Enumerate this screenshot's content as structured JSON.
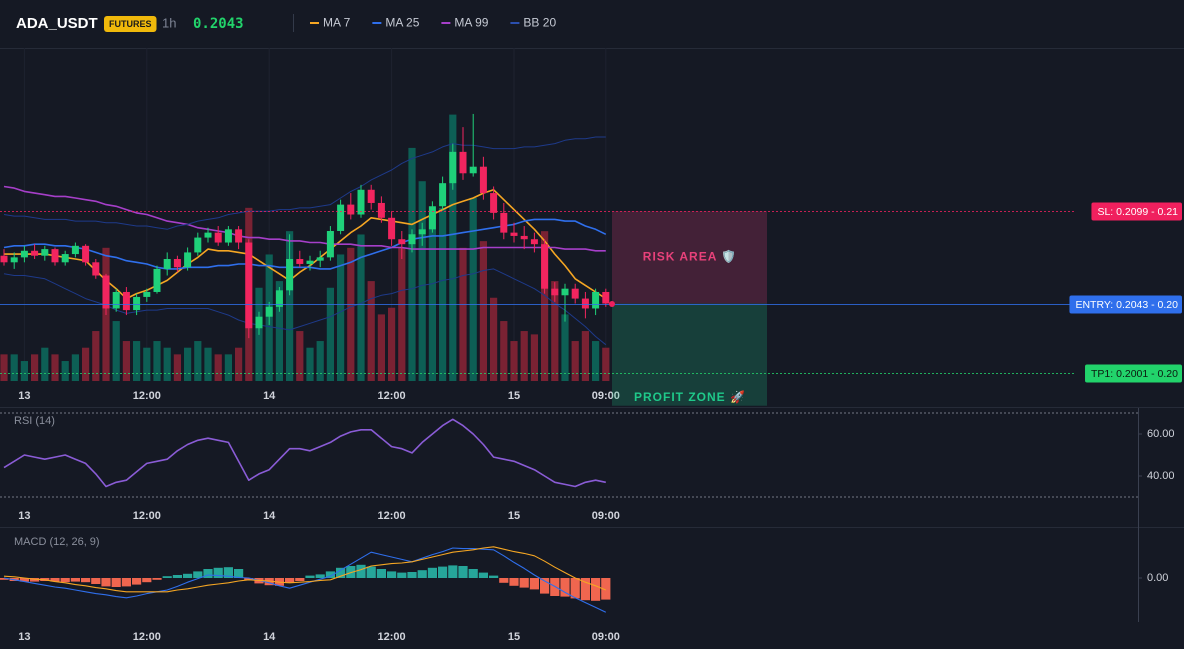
{
  "header": {
    "symbol": "ADA_USDT",
    "badge": "FUTURES",
    "interval": "1h",
    "price": 0.2043
  },
  "chart_data": [
    {
      "type": "candlestick",
      "categories": [
        null,
        null,
        "13",
        null,
        null,
        null,
        null,
        null,
        null,
        null,
        null,
        null,
        null,
        null,
        "12:00",
        null,
        null,
        null,
        null,
        null,
        null,
        null,
        null,
        null,
        null,
        null,
        "14",
        null,
        null,
        null,
        null,
        null,
        null,
        null,
        null,
        null,
        null,
        null,
        "12:00",
        null,
        null,
        null,
        null,
        null,
        null,
        null,
        null,
        null,
        null,
        null,
        "15",
        null,
        null,
        null,
        null,
        null,
        null,
        null,
        null,
        "09:00"
      ],
      "open": [
        0.2072,
        0.2068,
        0.2071,
        0.2075,
        0.2072,
        0.2076,
        0.2068,
        0.2073,
        0.2078,
        0.2068,
        0.206,
        0.204,
        0.205,
        0.2039,
        0.2047,
        0.205,
        0.2064,
        0.207,
        0.2065,
        0.2074,
        0.2083,
        0.2086,
        0.208,
        0.2088,
        0.208,
        0.2028,
        0.2035,
        0.2041,
        0.2051,
        0.207,
        0.2067,
        0.2069,
        0.2071,
        0.2087,
        0.2103,
        0.2097,
        0.2112,
        0.2104,
        0.2095,
        0.2082,
        0.2079,
        0.2085,
        0.2088,
        0.2102,
        0.2116,
        0.2135,
        0.2122,
        0.2126,
        0.211,
        0.2098,
        0.2086,
        0.2084,
        0.2082,
        0.2079,
        0.2052,
        0.2048,
        0.2052,
        0.2046,
        0.204,
        0.205
      ],
      "high": [
        0.2076,
        0.2074,
        0.2078,
        0.2079,
        0.2078,
        0.2077,
        0.2075,
        0.208,
        0.2079,
        0.207,
        0.2061,
        0.2052,
        0.2053,
        0.2049,
        0.2052,
        0.2066,
        0.2074,
        0.2072,
        0.2077,
        0.2086,
        0.2089,
        0.209,
        0.209,
        0.209,
        0.2082,
        0.2038,
        0.2044,
        0.2053,
        0.2085,
        0.2075,
        0.2072,
        0.2075,
        0.209,
        0.2106,
        0.211,
        0.2115,
        0.2115,
        0.2108,
        0.2099,
        0.2087,
        0.2088,
        0.2092,
        0.2105,
        0.212,
        0.214,
        0.215,
        0.2158,
        0.2132,
        0.2114,
        0.2104,
        0.2092,
        0.209,
        0.2086,
        0.2082,
        0.2056,
        0.2055,
        0.2055,
        0.205,
        0.2052,
        0.2052
      ],
      "low": [
        0.2066,
        0.2064,
        0.2068,
        0.207,
        0.2069,
        0.2066,
        0.2066,
        0.2071,
        0.2066,
        0.2058,
        0.2036,
        0.2038,
        0.2036,
        0.2036,
        0.2044,
        0.2049,
        0.206,
        0.2062,
        0.2063,
        0.2072,
        0.208,
        0.2078,
        0.2078,
        0.2076,
        0.2022,
        0.2024,
        0.203,
        0.2038,
        0.2048,
        0.2065,
        0.2063,
        0.2065,
        0.2069,
        0.2085,
        0.2094,
        0.2095,
        0.21,
        0.2092,
        0.2078,
        0.207,
        0.2074,
        0.2078,
        0.2086,
        0.21,
        0.2112,
        0.2118,
        0.212,
        0.2106,
        0.2094,
        0.2082,
        0.208,
        0.2076,
        0.2074,
        0.2049,
        0.2044,
        0.2032,
        0.2043,
        0.2034,
        0.2036,
        0.2041
      ],
      "close": [
        0.2068,
        0.2071,
        0.2075,
        0.2072,
        0.2076,
        0.2068,
        0.2073,
        0.2078,
        0.2068,
        0.206,
        0.204,
        0.205,
        0.2039,
        0.2047,
        0.205,
        0.2064,
        0.207,
        0.2065,
        0.2074,
        0.2083,
        0.2086,
        0.208,
        0.2088,
        0.208,
        0.2028,
        0.2035,
        0.2041,
        0.2051,
        0.207,
        0.2067,
        0.2069,
        0.2071,
        0.2087,
        0.2103,
        0.2097,
        0.2112,
        0.2104,
        0.2095,
        0.2082,
        0.2079,
        0.2085,
        0.2088,
        0.2102,
        0.2116,
        0.2135,
        0.2122,
        0.2126,
        0.211,
        0.2098,
        0.2086,
        0.2084,
        0.2082,
        0.2079,
        0.2052,
        0.2048,
        0.2052,
        0.2046,
        0.204,
        0.205,
        0.2043
      ],
      "volume": [
        8,
        8,
        6,
        8,
        10,
        8,
        6,
        8,
        10,
        15,
        40,
        18,
        12,
        12,
        10,
        12,
        10,
        8,
        10,
        12,
        10,
        8,
        8,
        10,
        52,
        28,
        38,
        30,
        45,
        15,
        10,
        12,
        28,
        38,
        40,
        44,
        30,
        20,
        22,
        40,
        70,
        60,
        50,
        52,
        80,
        40,
        55,
        42,
        25,
        18,
        12,
        15,
        14,
        45,
        30,
        20,
        12,
        15,
        12,
        10
      ],
      "ylim": [
        0.1996,
        0.2198
      ],
      "volume_lim": [
        0,
        100
      ],
      "up_color": "#1fd17a",
      "down_color": "#f2255f",
      "volume_up_color": "#0d5f55",
      "volume_down_color": "#7a2233",
      "grid": true,
      "series": [
        {
          "name": "MA 7",
          "color": "#f5a623",
          "values": [
            0.2073,
            0.2073,
            0.2073,
            0.2073,
            0.2073,
            0.2072,
            0.2071,
            0.207,
            0.2069,
            0.2063,
            0.2057,
            0.2052,
            0.2046,
            0.2049,
            0.2051,
            0.2054,
            0.2057,
            0.2062,
            0.2067,
            0.2071,
            0.2076,
            0.2075,
            0.2075,
            0.2074,
            0.2073,
            0.2069,
            0.2065,
            0.2061,
            0.2057,
            0.2062,
            0.2066,
            0.2071,
            0.2076,
            0.2081,
            0.2086,
            0.209,
            0.2095,
            0.2094,
            0.2093,
            0.2092,
            0.2091,
            0.2094,
            0.2097,
            0.21,
            0.2103,
            0.2105,
            0.2107,
            0.211,
            0.2112,
            0.2106,
            0.21,
            0.2094,
            0.2088,
            0.2081,
            0.2073,
            0.2066,
            0.2058,
            0.2054,
            0.205,
            0.2046
          ]
        },
        {
          "name": "MA 25",
          "color": "#2f6fec",
          "values": [
            0.2077,
            0.2078,
            0.2078,
            0.2079,
            0.2079,
            0.2078,
            0.2078,
            0.2077,
            0.2076,
            0.2074,
            0.2072,
            0.2071,
            0.2069,
            0.2068,
            0.2067,
            0.2065,
            0.2064,
            0.2064,
            0.2065,
            0.2065,
            0.2065,
            0.2066,
            0.2066,
            0.2067,
            0.2067,
            0.2066,
            0.2066,
            0.2065,
            0.2065,
            0.2065,
            0.2065,
            0.2064,
            0.2064,
            0.2066,
            0.2068,
            0.2071,
            0.2073,
            0.2075,
            0.2077,
            0.208,
            0.2082,
            0.2083,
            0.2084,
            0.2084,
            0.2085,
            0.2086,
            0.2087,
            0.2088,
            0.2089,
            0.209,
            0.2091,
            0.2093,
            0.2094,
            0.2094,
            0.2094,
            0.2093,
            0.2093,
            0.209,
            0.2088,
            0.2085
          ]
        },
        {
          "name": "MA 99",
          "color": "#a63fc9",
          "values": [
            0.2114,
            0.2113,
            0.2111,
            0.211,
            0.2109,
            0.2108,
            0.2108,
            0.2107,
            0.2106,
            0.2105,
            0.2103,
            0.2102,
            0.21,
            0.2098,
            0.2097,
            0.2095,
            0.2093,
            0.2092,
            0.2091,
            0.2089,
            0.2088,
            0.2087,
            0.2086,
            0.2084,
            0.2083,
            0.2083,
            0.2082,
            0.2082,
            0.2081,
            0.2081,
            0.208,
            0.208,
            0.2079,
            0.2079,
            0.2079,
            0.2078,
            0.2078,
            0.2078,
            0.2077,
            0.2077,
            0.2076,
            0.2076,
            0.2076,
            0.2076,
            0.2076,
            0.2076,
            0.2076,
            0.2077,
            0.2077,
            0.2077,
            0.2077,
            0.2077,
            0.2077,
            0.2077,
            0.2077,
            0.2076,
            0.2076,
            0.2076,
            0.2075,
            0.2075
          ]
        },
        {
          "name": "BB 20",
          "color": "#1e3a8a",
          "values": [
            0.2097,
            0.2096,
            0.2096,
            0.2095,
            0.2094,
            0.2094,
            0.2094,
            0.2093,
            0.2093,
            0.2093,
            0.2092,
            0.2092,
            0.2091,
            0.209,
            0.209,
            0.2089,
            0.2088,
            0.209,
            0.2091,
            0.2093,
            0.2094,
            0.2095,
            0.2097,
            0.2098,
            0.2099,
            0.2099,
            0.2099,
            0.21,
            0.21,
            0.2101,
            0.2101,
            0.2102,
            0.2103,
            0.2107,
            0.2111,
            0.2114,
            0.2118,
            0.2121,
            0.2124,
            0.2128,
            0.2131,
            0.2133,
            0.2135,
            0.2138,
            0.214,
            0.2139,
            0.2139,
            0.2138,
            0.2137,
            0.2137,
            0.2137,
            0.2138,
            0.2138,
            0.2139,
            0.214,
            0.2142,
            0.2143,
            0.2143,
            0.2144,
            0.2144
          ],
          "lower": [
            0.2061,
            0.206,
            0.206,
            0.2059,
            0.2058,
            0.2055,
            0.2052,
            0.2049,
            0.2046,
            0.2044,
            0.2042,
            0.2039,
            0.2037,
            0.2038,
            0.2039,
            0.2039,
            0.204,
            0.204,
            0.204,
            0.204,
            0.204,
            0.2038,
            0.2036,
            0.2033,
            0.2031,
            0.203,
            0.2029,
            0.2028,
            0.2027,
            0.2029,
            0.2031,
            0.2033,
            0.2035,
            0.2038,
            0.2041,
            0.2043,
            0.2046,
            0.2048,
            0.2049,
            0.2051,
            0.2052,
            0.2054,
            0.2055,
            0.2057,
            0.2058,
            0.206,
            0.2061,
            0.2063,
            0.2064,
            0.2061,
            0.2058,
            0.2055,
            0.2052,
            0.2048,
            0.2043,
            0.2039,
            0.2034,
            0.2029,
            0.2023,
            0.2018
          ]
        }
      ],
      "levels": [
        {
          "value": 0.2099,
          "label": "SL: 0.2099 - 0.21",
          "color": "#f0205e",
          "style": "dotted"
        },
        {
          "value": 0.2043,
          "label": "ENTRY: 0.2043 - 0.20",
          "color": "#2f6fec",
          "style": "solid"
        },
        {
          "value": 0.2001,
          "label": "TP1: 0.2001 - 0.20",
          "color": "#22d36b",
          "style": "dotted"
        }
      ],
      "zones": [
        {
          "label": "RISK AREA 🛡️",
          "from": 0.2099,
          "to": 0.2043,
          "color": "#e8417a"
        },
        {
          "label": "PROFIT ZONE 🚀",
          "from": 0.2043,
          "to": 0.1981,
          "color": "#1fc98a"
        }
      ]
    },
    {
      "type": "line",
      "title": "RSI (14)",
      "color": "#8a5cd6",
      "values": [
        44,
        47,
        50,
        49,
        48,
        49,
        50,
        48,
        46,
        41,
        35,
        37,
        38,
        42,
        46,
        47,
        48,
        52,
        55,
        57,
        58,
        57,
        56,
        47,
        38,
        41,
        43,
        48,
        53,
        53,
        52,
        54,
        56,
        59,
        61,
        62,
        62,
        58,
        54,
        53,
        51,
        56,
        60,
        64,
        67,
        64,
        60,
        55,
        49,
        48,
        47,
        45,
        43,
        40,
        37,
        36,
        35,
        37,
        38,
        37
      ],
      "ylim": [
        26,
        72
      ],
      "yticks": [
        {
          "value": 60,
          "label": "60.00"
        },
        {
          "value": 40,
          "label": "40.00"
        }
      ],
      "levels": [
        70,
        30
      ]
    },
    {
      "type": "macd",
      "title": "MACD (12, 26, 9)",
      "histogram": [
        -3e-05,
        -5e-05,
        -6e-05,
        -6e-05,
        -5e-05,
        -6e-05,
        -7e-05,
        -6e-05,
        -7e-05,
        -0.0001,
        -0.00014,
        -0.00015,
        -0.00014,
        -0.00011,
        -7e-05,
        -3e-05,
        3e-05,
        5e-05,
        7e-05,
        0.00011,
        0.00015,
        0.00017,
        0.00018,
        0.00015,
        -4e-05,
        -9e-05,
        -0.00012,
        -0.00013,
        -8e-05,
        -5e-05,
        4e-05,
        6e-05,
        0.00011,
        0.00017,
        0.0002,
        0.00022,
        0.00019,
        0.00015,
        0.00011,
        9e-05,
        0.0001,
        0.00013,
        0.00017,
        0.00019,
        0.00021,
        0.0002,
        0.00015,
        9e-05,
        4e-05,
        -8e-05,
        -0.00013,
        -0.00016,
        -0.00019,
        -0.00026,
        -0.0003,
        -0.00031,
        -0.00034,
        -0.00037,
        -0.00038,
        -0.00036
      ],
      "up_color": "#26a69a",
      "down_color": "#f0664f",
      "series": [
        {
          "color": "#2f6fec",
          "values": [
            0,
            -3e-05,
            -6e-05,
            -9e-05,
            -0.00012,
            -0.00015,
            -0.00017,
            -0.0002,
            -0.00023,
            -0.00026,
            -0.00028,
            -0.00031,
            -0.00033,
            -0.0003,
            -0.00026,
            -0.00023,
            -0.0002,
            -0.00014,
            -7e-05,
            -1e-05,
            5e-05,
            4e-05,
            3e-05,
            1e-05,
            0,
            -4e-05,
            -8e-05,
            -0.00013,
            -0.00017,
            -0.00012,
            -7e-05,
            -2e-05,
            3e-05,
            0.00013,
            0.00023,
            0.00033,
            0.00043,
            0.00039,
            0.00035,
            0.00031,
            0.00027,
            0.00033,
            0.00039,
            0.00044,
            0.0005,
            0.00049,
            0.00049,
            0.00048,
            0.00047,
            0.00037,
            0.00026,
            0.00016,
            5e-05,
            -5e-05,
            -0.00014,
            -0.00024,
            -0.00033,
            -0.00041,
            -0.00049,
            -0.00057
          ]
        },
        {
          "color": "#f5a623",
          "values": [
            3e-05,
            2e-05,
            0,
            -2e-05,
            -3e-05,
            -6e-05,
            -8e-05,
            -0.00011,
            -0.00013,
            -0.00016,
            -0.00018,
            -0.00021,
            -0.00023,
            -0.00023,
            -0.00023,
            -0.00023,
            -0.00023,
            -0.0002,
            -0.00018,
            -0.00015,
            -0.00012,
            -0.0001,
            -8e-05,
            -5e-05,
            -3e-05,
            -4e-05,
            -5e-05,
            -7e-05,
            -8e-05,
            -7e-05,
            -6e-05,
            -4e-05,
            -3e-05,
            3e-05,
            9e-05,
            0.00014,
            0.0002,
            0.00022,
            0.00024,
            0.00025,
            0.00027,
            0.00031,
            0.00035,
            0.00039,
            0.00043,
            0.00045,
            0.00047,
            0.0005,
            0.00052,
            0.00048,
            0.00044,
            0.00041,
            0.00037,
            0.00028,
            0.00018,
            9e-05,
            0,
            -7e-05,
            -0.00013,
            -0.0002
          ]
        }
      ],
      "ylim": [
        -0.0008,
        0.0008
      ],
      "yticks": [
        {
          "value": 0,
          "label": "0.00"
        }
      ]
    }
  ]
}
